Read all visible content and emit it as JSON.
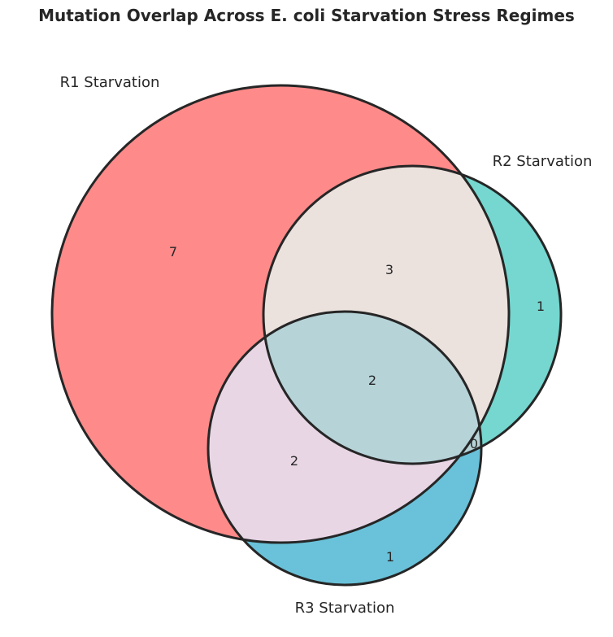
{
  "title": "Mutation Overlap Across E. coli Starvation Stress Regimes",
  "colors": {
    "r1": "#ff8a8a",
    "r2": "#75d7cf",
    "r3": "#69c2d9",
    "r1_r2": "#ebe1dd",
    "r1_r3": "#e8d6e5",
    "r2_r3": "#b6d3d8",
    "r1_r2_r3": "#b6d3d8",
    "outline": "#262626"
  },
  "sets": {
    "r1": "R1 Starvation",
    "r2": "R2 Starvation",
    "r3": "R3 Starvation"
  },
  "regions": {
    "r1_only": "7",
    "r2_only": "1",
    "r3_only": "1",
    "r1_r2": "3",
    "r1_r3": "2",
    "r2_r3": "0",
    "r1_r2_r3": "2"
  }
}
